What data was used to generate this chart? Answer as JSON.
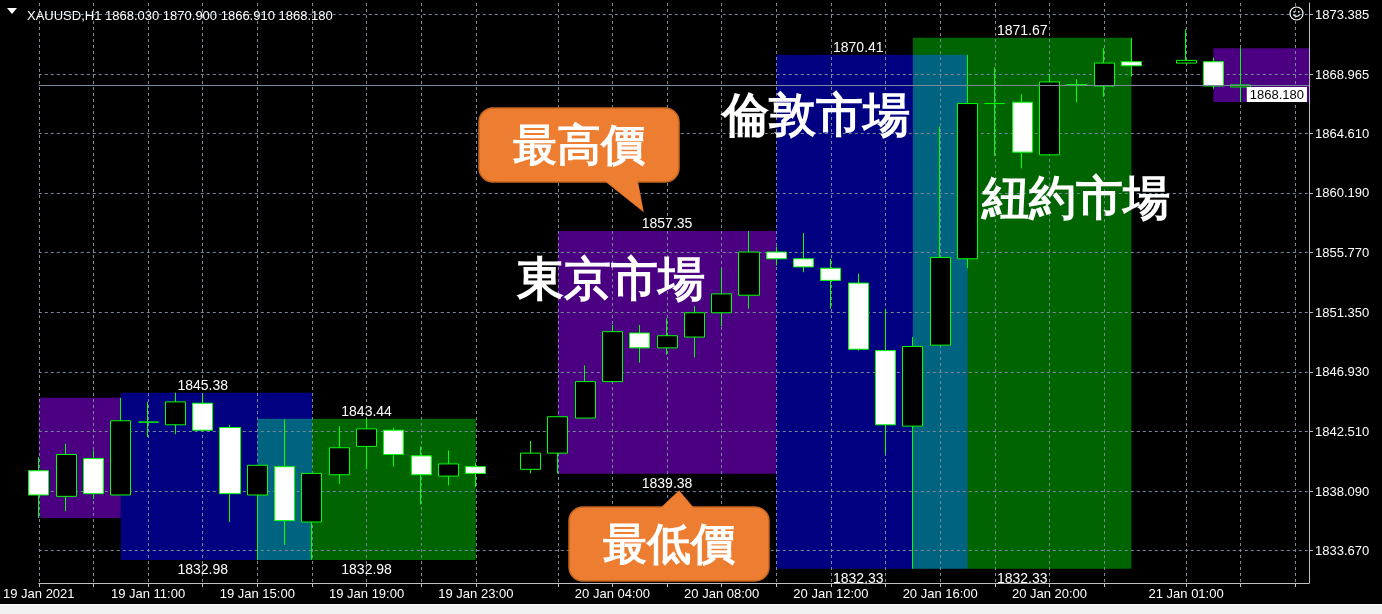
{
  "chart_data": {
    "type": "candlestick",
    "title": "XAUUSD,H1 1868.030 1870.900 1866.910 1868.180",
    "color": "#00ff00",
    "x": [
      "2021-01-19T07:00",
      "2021-01-19T08:00",
      "2021-01-19T09:00",
      "2021-01-19T10:00",
      "2021-01-19T11:00",
      "2021-01-19T12:00",
      "2021-01-19T13:00",
      "2021-01-19T14:00",
      "2021-01-19T15:00",
      "2021-01-19T16:00",
      "2021-01-19T17:00",
      "2021-01-19T18:00",
      "2021-01-19T19:00",
      "2021-01-19T20:00",
      "2021-01-19T21:00",
      "2021-01-19T22:00",
      "2021-01-19T23:00",
      "2021-01-20T01:00",
      "2021-01-20T02:00",
      "2021-01-20T03:00",
      "2021-01-20T04:00",
      "2021-01-20T05:00",
      "2021-01-20T06:00",
      "2021-01-20T07:00",
      "2021-01-20T08:00",
      "2021-01-20T09:00",
      "2021-01-20T10:00",
      "2021-01-20T11:00",
      "2021-01-20T12:00",
      "2021-01-20T13:00",
      "2021-01-20T14:00",
      "2021-01-20T15:00",
      "2021-01-20T16:00",
      "2021-01-20T17:00",
      "2021-01-20T18:00",
      "2021-01-20T19:00",
      "2021-01-20T20:00",
      "2021-01-20T21:00",
      "2021-01-20T22:00",
      "2021-01-20T23:00",
      "2021-01-21T01:00",
      "2021-01-21T02:00",
      "2021-01-21T03:00"
    ],
    "ohlc": [
      [
        1839.6,
        1840.6,
        1836.1,
        1837.8
      ],
      [
        1837.7,
        1841.6,
        1836.6,
        1840.8
      ],
      [
        1840.5,
        1841.1,
        1837.5,
        1837.9
      ],
      [
        1837.8,
        1845.0,
        1837.8,
        1843.3
      ],
      [
        1843.2,
        1844.7,
        1842.1,
        1843.2
      ],
      [
        1843.0,
        1845.38,
        1842.3,
        1844.7
      ],
      [
        1844.6,
        1845.3,
        1842.5,
        1842.6
      ],
      [
        1842.8,
        1843.0,
        1835.8,
        1837.9
      ],
      [
        1837.8,
        1840.0,
        1832.98,
        1840.0
      ],
      [
        1839.9,
        1843.4,
        1834.1,
        1835.9
      ],
      [
        1835.8,
        1839.4,
        1833.0,
        1839.4
      ],
      [
        1839.3,
        1842.9,
        1838.6,
        1841.3
      ],
      [
        1841.4,
        1843.44,
        1839.7,
        1842.7
      ],
      [
        1842.6,
        1842.8,
        1839.9,
        1840.8
      ],
      [
        1840.7,
        1841.4,
        1837.1,
        1839.3
      ],
      [
        1839.2,
        1841.1,
        1838.5,
        1840.1
      ],
      [
        1839.9,
        1840.2,
        1838.4,
        1839.4
      ],
      [
        1839.7,
        1841.8,
        1839.4,
        1840.9
      ],
      [
        1840.9,
        1843.6,
        1839.38,
        1843.6
      ],
      [
        1843.5,
        1847.4,
        1843.5,
        1846.2
      ],
      [
        1846.2,
        1850.4,
        1846.2,
        1849.9
      ],
      [
        1849.8,
        1850.4,
        1847.6,
        1848.7
      ],
      [
        1848.7,
        1850.9,
        1848.2,
        1849.6
      ],
      [
        1849.5,
        1851.8,
        1848.0,
        1851.3
      ],
      [
        1851.3,
        1854.6,
        1850.3,
        1852.7
      ],
      [
        1852.6,
        1857.35,
        1851.6,
        1855.8
      ],
      [
        1855.8,
        1856.2,
        1854.8,
        1855.3
      ],
      [
        1855.3,
        1857.2,
        1854.3,
        1854.7
      ],
      [
        1854.6,
        1855.3,
        1851.6,
        1853.7
      ],
      [
        1853.5,
        1854.2,
        1848.5,
        1848.6
      ],
      [
        1848.5,
        1851.6,
        1840.8,
        1843.0
      ],
      [
        1842.9,
        1849.5,
        1832.33,
        1848.8
      ],
      [
        1848.9,
        1865.1,
        1848.9,
        1855.4
      ],
      [
        1855.3,
        1870.41,
        1854.6,
        1866.8
      ],
      [
        1866.8,
        1869.5,
        1862.9,
        1866.8
      ],
      [
        1866.9,
        1867.5,
        1862.0,
        1863.2
      ],
      [
        1863.0,
        1869.0,
        1863.0,
        1868.4
      ],
      [
        1868.2,
        1868.6,
        1866.9,
        1868.2
      ],
      [
        1868.1,
        1870.9,
        1867.3,
        1869.8
      ],
      [
        1869.9,
        1871.67,
        1868.8,
        1869.6
      ],
      [
        1869.8,
        1872.3,
        1869.8,
        1870.0
      ],
      [
        1869.9,
        1870.2,
        1867.9,
        1868.1
      ],
      [
        1868.03,
        1870.9,
        1866.91,
        1868.18
      ]
    ],
    "series": [
      {
        "type": "area",
        "color": "#4b0082",
        "x": [
          "2021-01-19T07:00",
          "2021-01-19T10:00"
        ],
        "values": [
          null,
          null
        ],
        "lower": [
          1836.1,
          1836.1
        ],
        "upper": [
          1845.0,
          1845.0
        ]
      },
      {
        "type": "area",
        "color": "#000080",
        "x": [
          "2021-01-19T10:00",
          "2021-01-19T17:00"
        ],
        "values": [
          null,
          null
        ],
        "lower": [
          1832.98,
          1832.98
        ],
        "upper": [
          1845.38,
          1845.38
        ]
      },
      {
        "type": "area",
        "color": "#006400",
        "x": [
          "2021-01-19T15:00",
          "2021-01-19T23:00"
        ],
        "values": [
          null,
          null
        ],
        "lower": [
          1832.98,
          1832.98
        ],
        "upper": [
          1843.44,
          1843.44
        ]
      },
      {
        "type": "area",
        "color": "#4b0082",
        "x": [
          "2021-01-20T02:00",
          "2021-01-20T10:00"
        ],
        "values": [
          null,
          null
        ],
        "lower": [
          1839.38,
          1839.38
        ],
        "upper": [
          1857.35,
          1857.35
        ]
      },
      {
        "type": "area",
        "color": "#000080",
        "x": [
          "2021-01-20T10:00",
          "2021-01-20T17:00"
        ],
        "values": [
          null,
          null
        ],
        "lower": [
          1832.33,
          1832.33
        ],
        "upper": [
          1870.41,
          1870.41
        ]
      },
      {
        "type": "area",
        "color": "#006400",
        "x": [
          "2021-01-20T15:00",
          "2021-01-20T23:00"
        ],
        "values": [
          null,
          null
        ],
        "lower": [
          1832.33,
          1832.33
        ],
        "upper": [
          1871.67,
          1871.67
        ]
      },
      {
        "type": "area",
        "color": "#4b0082",
        "x": [
          "2021-01-21T02:00",
          "2021-01-21T05:30"
        ],
        "values": [
          null,
          null
        ],
        "lower": [
          1866.91,
          1866.91
        ],
        "upper": [
          1870.9,
          1870.9
        ]
      }
    ],
    "xlim": [
      "2021-01-19T07:00",
      "2021-01-21T05:30"
    ],
    "xticks": [
      {
        "value": "2021-01-19T07:00",
        "label": "19 Jan 2021"
      },
      {
        "value": "2021-01-19T09:00",
        "label": null
      },
      {
        "value": "2021-01-19T11:00",
        "label": "19 Jan 11:00"
      },
      {
        "value": "2021-01-19T13:00",
        "label": null
      },
      {
        "value": "2021-01-19T15:00",
        "label": "19 Jan 15:00"
      },
      {
        "value": "2021-01-19T17:00",
        "label": null
      },
      {
        "value": "2021-01-19T19:00",
        "label": "19 Jan 19:00"
      },
      {
        "value": "2021-01-19T21:00",
        "label": null
      },
      {
        "value": "2021-01-19T23:00",
        "label": "19 Jan 23:00"
      },
      {
        "value": "2021-01-20T02:00",
        "label": null
      },
      {
        "value": "2021-01-20T04:00",
        "label": "20 Jan 04:00"
      },
      {
        "value": "2021-01-20T06:00",
        "label": null
      },
      {
        "value": "2021-01-20T08:00",
        "label": "20 Jan 08:00"
      },
      {
        "value": "2021-01-20T10:00",
        "label": null
      },
      {
        "value": "2021-01-20T12:00",
        "label": "20 Jan 12:00"
      },
      {
        "value": "2021-01-20T14:00",
        "label": null
      },
      {
        "value": "2021-01-20T16:00",
        "label": "20 Jan 16:00"
      },
      {
        "value": "2021-01-20T18:00",
        "label": null
      },
      {
        "value": "2021-01-20T20:00",
        "label": "20 Jan 20:00"
      },
      {
        "value": "2021-01-20T22:00",
        "label": null
      },
      {
        "value": "2021-01-21T01:00",
        "label": "21 Jan 01:00"
      },
      {
        "value": "2021-01-21T03:00",
        "label": null
      },
      {
        "value": "2021-01-21T05:00",
        "label": null
      }
    ],
    "ylim": [
      1831.28,
      1874.25
    ],
    "yticks": [
      {
        "value": 1833.67,
        "label": "1833.670"
      },
      {
        "value": 1838.09,
        "label": "1838.090"
      },
      {
        "value": 1842.51,
        "label": "1842.510"
      },
      {
        "value": 1846.93,
        "label": "1846.930"
      },
      {
        "value": 1851.35,
        "label": "1851.350"
      },
      {
        "value": 1855.77,
        "label": "1855.770"
      },
      {
        "value": 1860.19,
        "label": "1860.190"
      },
      {
        "value": 1864.61,
        "label": "1864.610"
      },
      1868.965,
      1873.385
    ],
    "grid": true,
    "ref_lines": [
      {
        "axis": "y",
        "value": 1868.18,
        "label": "1868.180",
        "color": "#778899"
      }
    ],
    "annotations": [
      {
        "text": "1845.38",
        "x": "2021-01-19T13:00",
        "y": 1845.38
      },
      {
        "text": "1832.98",
        "x": "2021-01-19T13:00",
        "y": 1832.98
      },
      {
        "text": "1843.44",
        "x": "2021-01-19T19:00",
        "y": 1843.44
      },
      {
        "text": "1832.98",
        "x": "2021-01-19T19:00",
        "y": 1832.98
      },
      {
        "text": "1857.35",
        "x": "2021-01-20T06:00",
        "y": 1857.35
      },
      {
        "text": "1839.38",
        "x": "2021-01-20T06:00",
        "y": 1839.38
      },
      {
        "text": "1870.41",
        "x": "2021-01-20T13:00",
        "y": 1870.41
      },
      {
        "text": "1832.33",
        "x": "2021-01-20T13:00",
        "y": 1832.33
      },
      {
        "text": "1871.67",
        "x": "2021-01-20T19:00",
        "y": 1871.67
      },
      {
        "text": "1832.33",
        "x": "2021-01-20T19:00",
        "y": 1832.33
      },
      "東京市場",
      "倫敦市場",
      "紐約市場",
      {
        "text": "最高價",
        "x": "2021-01-20T06:00",
        "y": 1857.35
      },
      {
        "text": "最低價",
        "x": "2021-01-20T06:00",
        "y": 1839.38
      }
    ]
  }
}
